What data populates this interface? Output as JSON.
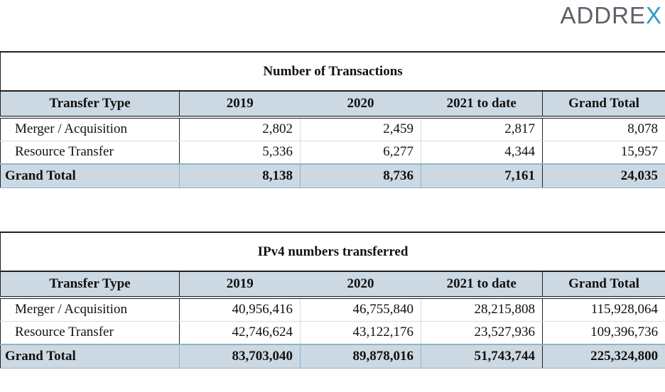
{
  "brand": {
    "logo_main": "ADDRE",
    "logo_accent": "X"
  },
  "tables": [
    {
      "title": "Number of Transactions",
      "headers": [
        "Transfer Type",
        "2019",
        "2020",
        "2021 to date",
        "Grand Total"
      ],
      "rows": [
        [
          "Merger / Acquisition",
          "2,802",
          "2,459",
          "2,817",
          "8,078"
        ],
        [
          "Resource Transfer",
          "5,336",
          "6,277",
          "4,344",
          "15,957"
        ]
      ],
      "total": [
        "Grand Total",
        "8,138",
        "8,736",
        "7,161",
        "24,035"
      ]
    },
    {
      "title": "IPv4 numbers transferred",
      "headers": [
        "Transfer Type",
        "2019",
        "2020",
        "2021 to date",
        "Grand Total"
      ],
      "rows": [
        [
          "Merger / Acquisition",
          "40,956,416",
          "46,755,840",
          "28,215,808",
          "115,928,064"
        ],
        [
          "Resource Transfer",
          "42,746,624",
          "43,122,176",
          "23,527,936",
          "109,396,736"
        ]
      ],
      "total": [
        "Grand Total",
        "83,703,040",
        "89,878,016",
        "51,743,744",
        "225,324,800"
      ]
    }
  ],
  "colors": {
    "header_fill": "#ccd9e3",
    "logo_gray": "#5a6169",
    "logo_accent": "#2f9bbf"
  }
}
